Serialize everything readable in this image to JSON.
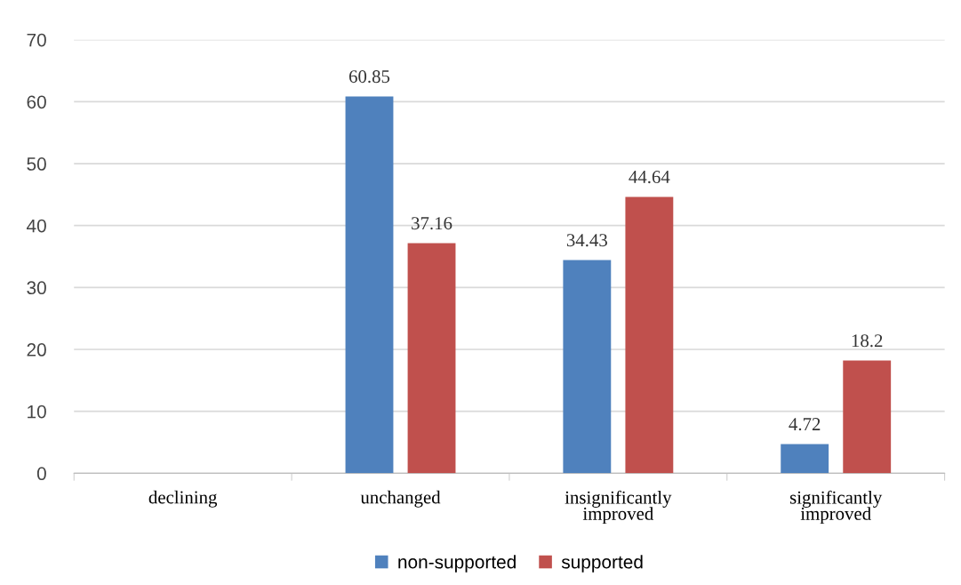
{
  "chart_data": {
    "type": "bar",
    "categories": [
      "declining",
      "unchanged",
      "insignificantly\nimproved",
      "significantly\nimproved"
    ],
    "series": [
      {
        "name": "non-supported",
        "color": "#4f81bd",
        "values": [
          null,
          60.85,
          34.43,
          4.72
        ]
      },
      {
        "name": "supported",
        "color": "#c0504d",
        "values": [
          null,
          37.16,
          44.64,
          18.2
        ]
      }
    ],
    "ylim": [
      0,
      70
    ],
    "yticks": [
      0,
      10,
      20,
      30,
      40,
      50,
      60,
      70
    ],
    "grid": "y",
    "legend": "bottom",
    "data_labels": true
  }
}
